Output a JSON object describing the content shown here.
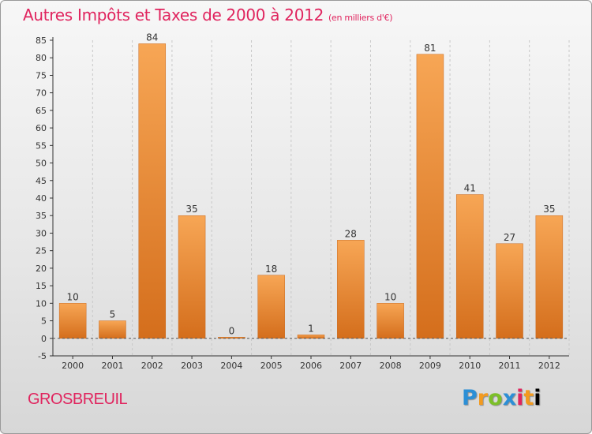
{
  "header": {
    "title": "Autres Impôts et Taxes de 2000 à 2012",
    "unit": "(en milliers d'€)"
  },
  "footer": {
    "commune": "GROSBREUIL",
    "logo_text": "Proxiti"
  },
  "colors": {
    "title": "#e0245e",
    "bar_top": "#f7a655",
    "bar_bottom": "#d46e1c",
    "axis": "#333333",
    "grid": "#c8c8c8"
  },
  "chart_data": {
    "type": "bar",
    "title": "Autres Impôts et Taxes de 2000 à 2012",
    "subtitle": "(en milliers d'€)",
    "xlabel": "",
    "ylabel": "",
    "categories": [
      "2000",
      "2001",
      "2002",
      "2003",
      "2004",
      "2005",
      "2006",
      "2007",
      "2008",
      "2009",
      "2010",
      "2011",
      "2012"
    ],
    "values": [
      10,
      5,
      84,
      35,
      0,
      18,
      1,
      28,
      10,
      81,
      41,
      27,
      35
    ],
    "data_labels": [
      "10",
      "5",
      "84",
      "35",
      "0",
      "18",
      "1",
      "28",
      "10",
      "81",
      "41",
      "27",
      "35"
    ],
    "ylim": [
      -5,
      85
    ],
    "yticks": [
      -5,
      0,
      5,
      10,
      15,
      20,
      25,
      30,
      35,
      40,
      45,
      50,
      55,
      60,
      65,
      70,
      75,
      80,
      85
    ],
    "grid": "vertical-dashed",
    "legend": "none"
  }
}
